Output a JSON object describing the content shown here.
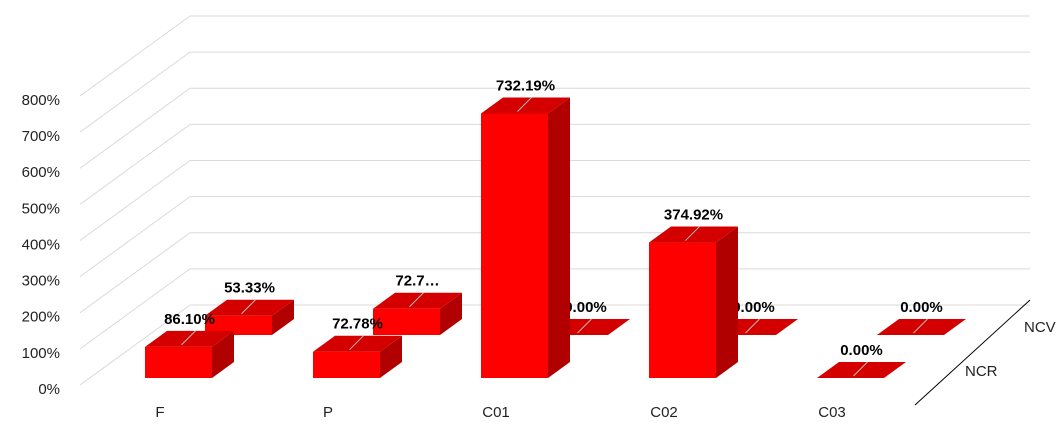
{
  "chart_data": {
    "type": "bar3d",
    "categories": [
      "F",
      "P",
      "C01",
      "C02",
      "C03"
    ],
    "series": [
      {
        "name": "NCR",
        "color": "#ff0000",
        "values": [
          86.1,
          72.78,
          732.19,
          374.92,
          0.0
        ],
        "value_labels": [
          "86.10%",
          "72.78%",
          "732.19%",
          "374.92%",
          "0.00%"
        ]
      },
      {
        "name": "NCV",
        "color": "#ff0000",
        "values": [
          53.33,
          72.7,
          0.0,
          0.0,
          0.0
        ],
        "value_labels": [
          "53.33%",
          "72.7…",
          "0.00%",
          "0.00%",
          "0.00%"
        ]
      }
    ],
    "ylim": [
      0,
      800
    ],
    "yticks": [
      {
        "value": 0,
        "label": "0%"
      },
      {
        "value": 100,
        "label": "100%"
      },
      {
        "value": 200,
        "label": "200%"
      },
      {
        "value": 300,
        "label": "300%"
      },
      {
        "value": 400,
        "label": "400%"
      },
      {
        "value": 500,
        "label": "500%"
      },
      {
        "value": 600,
        "label": "600%"
      },
      {
        "value": 700,
        "label": "700%"
      },
      {
        "value": 800,
        "label": "800%"
      }
    ],
    "grid": true
  }
}
